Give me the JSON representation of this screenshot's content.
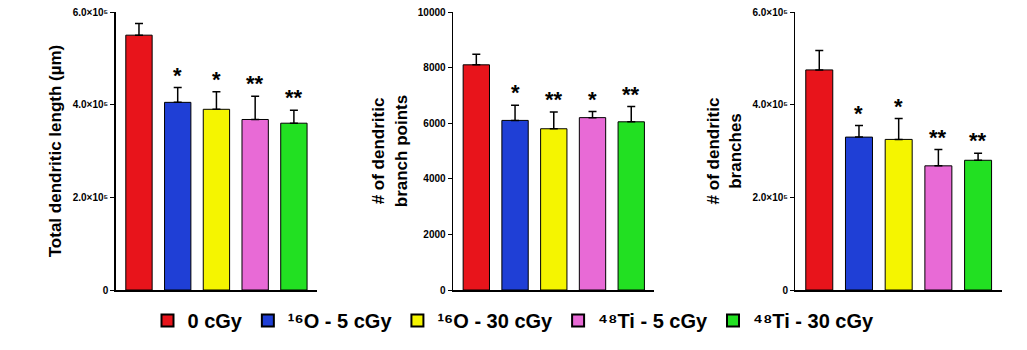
{
  "chart_data": [
    {
      "type": "bar",
      "y_label": "Total dendritic length (µm)",
      "categories": [
        "0 cGy",
        "¹⁶O - 5 cGy",
        "¹⁶O - 30 cGy",
        "⁴⁸Ti - 5 cGy",
        "⁴⁸Ti - 30 cGy"
      ],
      "values": [
        550000,
        405000,
        390000,
        368000,
        360000
      ],
      "errors": [
        25000,
        32000,
        38000,
        50000,
        28000
      ],
      "significance": [
        null,
        "*",
        "*",
        "**",
        "**"
      ],
      "colors": [
        "#e8141b",
        "#1f3fd6",
        "#f5f500",
        "#e86ad6",
        "#22e022"
      ],
      "ylim": [
        0,
        600000
      ],
      "yticks": [
        0,
        {
          "value": 200000,
          "label": "2.0×10⁵"
        },
        {
          "value": 400000,
          "label": "4.0×10⁵"
        },
        {
          "value": 600000,
          "label": "6.0×10⁵"
        }
      ],
      "tick_labels": "y",
      "legend": "bottom"
    },
    {
      "type": "bar",
      "y_label": "# of dendritic\nbranch points",
      "categories": [
        "0 cGy",
        "¹⁶O - 5 cGy",
        "¹⁶O - 30 cGy",
        "⁴⁸Ti - 5 cGy",
        "⁴⁸Ti - 30 cGy"
      ],
      "values": [
        8100,
        6100,
        5800,
        6200,
        6050
      ],
      "errors": [
        380,
        550,
        600,
        220,
        550
      ],
      "significance": [
        null,
        "*",
        "**",
        "*",
        "**"
      ],
      "colors": [
        "#e8141b",
        "#1f3fd6",
        "#f5f500",
        "#e86ad6",
        "#22e022"
      ],
      "ylim": [
        0,
        10000
      ],
      "yticks": [
        0,
        2000,
        4000,
        6000,
        8000,
        10000
      ],
      "tick_labels": "y"
    },
    {
      "type": "bar",
      "y_label": "# of dendritic\nbranches",
      "categories": [
        "0 cGy",
        "¹⁶O - 5 cGy",
        "¹⁶O - 30 cGy",
        "⁴⁸Ti - 5 cGy",
        "⁴⁸Ti - 30 cGy"
      ],
      "values": [
        475000,
        330000,
        325000,
        268000,
        280000
      ],
      "errors": [
        42000,
        25000,
        45000,
        35000,
        15000
      ],
      "significance": [
        null,
        "*",
        "*",
        "**",
        "**"
      ],
      "colors": [
        "#e8141b",
        "#1f3fd6",
        "#f5f500",
        "#e86ad6",
        "#22e022"
      ],
      "ylim": [
        0,
        600000
      ],
      "yticks": [
        0,
        {
          "value": 200000,
          "label": "2.0×10⁵"
        },
        {
          "value": 400000,
          "label": "4.0×10⁵"
        },
        {
          "value": 600000,
          "label": "6.0×10⁵"
        }
      ],
      "tick_labels": "y"
    }
  ]
}
